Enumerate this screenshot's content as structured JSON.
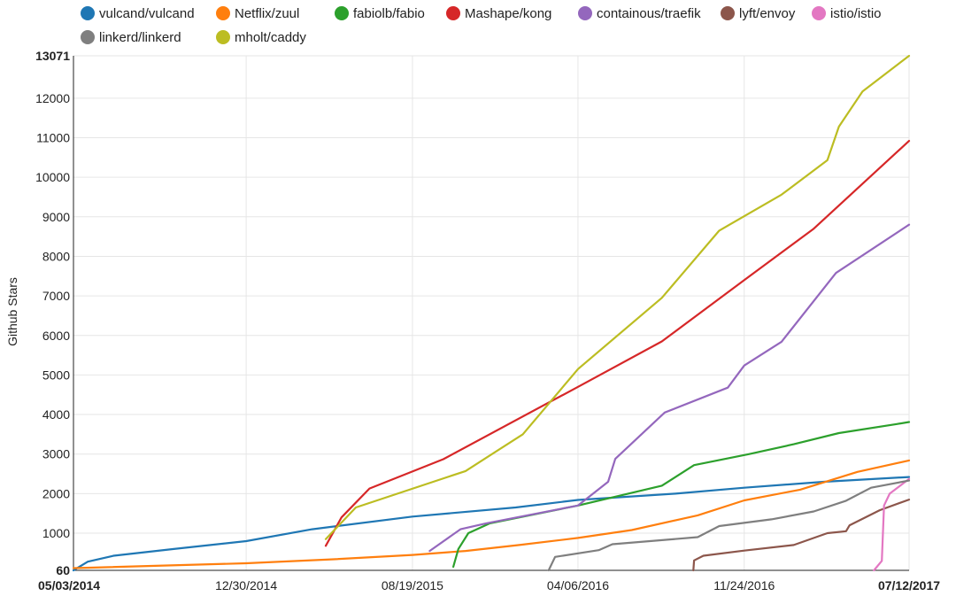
{
  "chart_data": {
    "type": "line",
    "title": "",
    "ylabel": "Github Stars",
    "xlabel": "",
    "ylim": [
      60,
      13071
    ],
    "xlim": [
      "2014-05-03",
      "2017-07-12"
    ],
    "y_ticks": [
      60,
      1000,
      2000,
      3000,
      4000,
      5000,
      6000,
      7000,
      8000,
      9000,
      10000,
      11000,
      12000,
      13071
    ],
    "x_ticks": [
      "05/03/2014",
      "12/30/2014",
      "08/19/2015",
      "04/06/2016",
      "11/24/2016",
      "07/12/2017"
    ],
    "grid": true,
    "legend_position": "top",
    "series": [
      {
        "name": "vulcand/vulcand",
        "color": "#1f77b4",
        "points": [
          [
            "2014-05-03",
            60
          ],
          [
            "2014-05-23",
            280
          ],
          [
            "2014-06-28",
            430
          ],
          [
            "2014-09-20",
            600
          ],
          [
            "2014-12-30",
            800
          ],
          [
            "2015-04-01",
            1100
          ],
          [
            "2015-08-19",
            1420
          ],
          [
            "2016-01-10",
            1650
          ],
          [
            "2016-04-06",
            1840
          ],
          [
            "2016-08-20",
            2000
          ],
          [
            "2016-11-24",
            2150
          ],
          [
            "2017-03-15",
            2300
          ],
          [
            "2017-07-12",
            2420
          ]
        ]
      },
      {
        "name": "Netflix/zuul",
        "color": "#ff7f0e",
        "points": [
          [
            "2014-05-03",
            115
          ],
          [
            "2014-12-30",
            240
          ],
          [
            "2015-05-01",
            340
          ],
          [
            "2015-08-19",
            450
          ],
          [
            "2015-11-01",
            550
          ],
          [
            "2016-01-15",
            700
          ],
          [
            "2016-04-06",
            880
          ],
          [
            "2016-06-20",
            1080
          ],
          [
            "2016-09-20",
            1450
          ],
          [
            "2016-11-24",
            1830
          ],
          [
            "2017-02-10",
            2100
          ],
          [
            "2017-05-01",
            2550
          ],
          [
            "2017-07-12",
            2840
          ]
        ]
      },
      {
        "name": "fabiolb/fabio",
        "color": "#2ca02c",
        "points": [
          [
            "2015-10-15",
            150
          ],
          [
            "2015-10-22",
            600
          ],
          [
            "2015-11-05",
            1000
          ],
          [
            "2015-12-05",
            1250
          ],
          [
            "2016-04-06",
            1700
          ],
          [
            "2016-08-01",
            2200
          ],
          [
            "2016-09-15",
            2720
          ],
          [
            "2016-12-01",
            3000
          ],
          [
            "2017-02-01",
            3250
          ],
          [
            "2017-04-05",
            3530
          ],
          [
            "2017-06-25",
            3760
          ],
          [
            "2017-07-12",
            3810
          ]
        ]
      },
      {
        "name": "Mashape/kong",
        "color": "#d62728",
        "points": [
          [
            "2015-04-20",
            680
          ],
          [
            "2015-05-12",
            1400
          ],
          [
            "2015-06-20",
            2130
          ],
          [
            "2015-10-01",
            2870
          ],
          [
            "2016-04-06",
            4700
          ],
          [
            "2016-08-01",
            5850
          ],
          [
            "2016-11-24",
            7400
          ],
          [
            "2017-03-01",
            8700
          ],
          [
            "2017-07-12",
            10920
          ]
        ]
      },
      {
        "name": "containous/traefik",
        "color": "#9467bd",
        "points": [
          [
            "2015-09-12",
            550
          ],
          [
            "2015-10-25",
            1100
          ],
          [
            "2015-11-30",
            1250
          ],
          [
            "2016-04-06",
            1700
          ],
          [
            "2016-05-18",
            2300
          ],
          [
            "2016-05-28",
            2880
          ],
          [
            "2016-08-05",
            4050
          ],
          [
            "2016-11-01",
            4680
          ],
          [
            "2016-11-24",
            5240
          ],
          [
            "2017-01-15",
            5840
          ],
          [
            "2017-04-01",
            7580
          ],
          [
            "2017-07-12",
            8800
          ]
        ]
      },
      {
        "name": "lyft/envoy",
        "color": "#8c564b",
        "points": [
          [
            "2016-09-14",
            60
          ],
          [
            "2016-09-15",
            310
          ],
          [
            "2016-09-28",
            430
          ],
          [
            "2016-11-24",
            560
          ],
          [
            "2017-02-01",
            700
          ],
          [
            "2017-03-20",
            1000
          ],
          [
            "2017-04-15",
            1050
          ],
          [
            "2017-04-20",
            1200
          ],
          [
            "2017-06-01",
            1580
          ],
          [
            "2017-07-12",
            1850
          ]
        ]
      },
      {
        "name": "istio/istio",
        "color": "#e377c2",
        "points": [
          [
            "2017-05-24",
            60
          ],
          [
            "2017-06-04",
            300
          ],
          [
            "2017-06-07",
            1700
          ],
          [
            "2017-06-15",
            2000
          ],
          [
            "2017-07-12",
            2370
          ]
        ]
      },
      {
        "name": "linkerd/linkerd",
        "color": "#7f7f7f",
        "points": [
          [
            "2016-02-25",
            60
          ],
          [
            "2016-03-05",
            400
          ],
          [
            "2016-05-05",
            570
          ],
          [
            "2016-05-24",
            720
          ],
          [
            "2016-09-20",
            900
          ],
          [
            "2016-10-20",
            1180
          ],
          [
            "2017-01-01",
            1350
          ],
          [
            "2017-03-01",
            1550
          ],
          [
            "2017-04-15",
            1820
          ],
          [
            "2017-05-20",
            2150
          ],
          [
            "2017-07-12",
            2330
          ]
        ]
      },
      {
        "name": "mholt/caddy",
        "color": "#bcbd22",
        "points": [
          [
            "2015-04-20",
            850
          ],
          [
            "2015-06-01",
            1650
          ],
          [
            "2015-11-01",
            2570
          ],
          [
            "2016-01-20",
            3500
          ],
          [
            "2016-04-06",
            5150
          ],
          [
            "2016-08-01",
            6950
          ],
          [
            "2016-10-20",
            8650
          ],
          [
            "2017-01-15",
            9560
          ],
          [
            "2017-03-20",
            10430
          ],
          [
            "2017-04-05",
            11280
          ],
          [
            "2017-05-08",
            12170
          ],
          [
            "2017-07-12",
            13071
          ]
        ]
      }
    ]
  }
}
